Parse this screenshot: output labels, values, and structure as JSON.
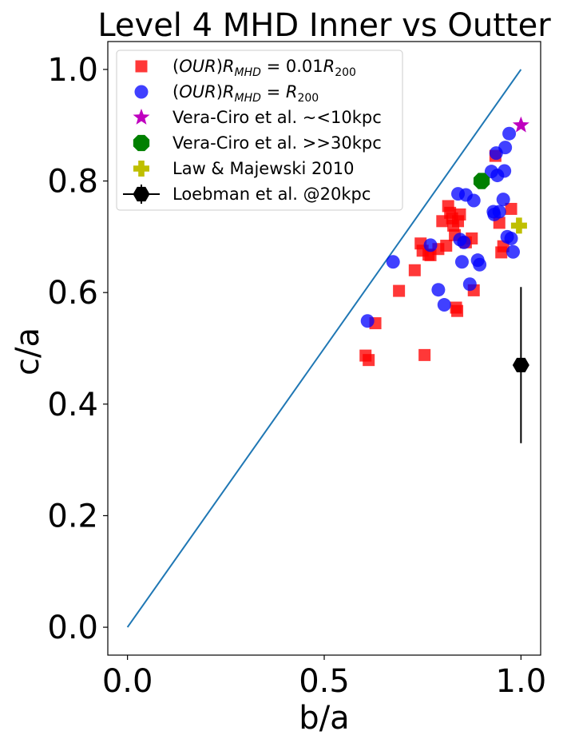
{
  "chart_data": {
    "type": "scatter",
    "title": "Level 4 MHD Inner vs Outter",
    "xlabel": "b/a",
    "ylabel": "c/a",
    "xlim": [
      -0.05,
      1.05
    ],
    "ylim": [
      -0.05,
      1.05
    ],
    "xticks": [
      "0.0",
      "0.5",
      "1.0"
    ],
    "yticks": [
      "0.0",
      "0.2",
      "0.4",
      "0.6",
      "0.8",
      "1.0"
    ],
    "grid": false,
    "legend_position": "top-left",
    "reference_line": {
      "x": [
        0,
        1
      ],
      "y": [
        0,
        1
      ],
      "color": "#1f77b4"
    },
    "series": [
      {
        "name": "(OUR)R_MHD = 0.01R_200",
        "legend_parts": {
          "prefix": "(",
          "italic1": "OUR",
          "mid": ")",
          "italic2": "R",
          "sub2": "MHD",
          "eq": " = 0.01",
          "italic3": "R",
          "sub3": "200"
        },
        "marker": "square",
        "color": "#ff0000",
        "points": [
          [
            0.605,
            0.487
          ],
          [
            0.613,
            0.479
          ],
          [
            0.63,
            0.545
          ],
          [
            0.69,
            0.603
          ],
          [
            0.73,
            0.64
          ],
          [
            0.745,
            0.688
          ],
          [
            0.75,
            0.675
          ],
          [
            0.755,
            0.488
          ],
          [
            0.765,
            0.668
          ],
          [
            0.77,
            0.667
          ],
          [
            0.79,
            0.678
          ],
          [
            0.8,
            0.728
          ],
          [
            0.81,
            0.684
          ],
          [
            0.815,
            0.755
          ],
          [
            0.82,
            0.743
          ],
          [
            0.825,
            0.733
          ],
          [
            0.828,
            0.72
          ],
          [
            0.832,
            0.703
          ],
          [
            0.835,
            0.573
          ],
          [
            0.838,
            0.567
          ],
          [
            0.84,
            0.728
          ],
          [
            0.845,
            0.74
          ],
          [
            0.86,
            0.69
          ],
          [
            0.875,
            0.697
          ],
          [
            0.88,
            0.604
          ],
          [
            0.935,
            0.845
          ],
          [
            0.945,
            0.725
          ],
          [
            0.95,
            0.672
          ],
          [
            0.955,
            0.683
          ],
          [
            0.975,
            0.75
          ]
        ]
      },
      {
        "name": "(OUR)R_MHD = R_200",
        "legend_parts": {
          "prefix": "(",
          "italic1": "OUR",
          "mid": ")",
          "italic2": "R",
          "sub2": "MHD",
          "eq": " = ",
          "italic3": "R",
          "sub3": "200"
        },
        "marker": "circle",
        "color": "#0000ff",
        "points": [
          [
            0.61,
            0.549
          ],
          [
            0.675,
            0.655
          ],
          [
            0.77,
            0.685
          ],
          [
            0.79,
            0.605
          ],
          [
            0.805,
            0.578
          ],
          [
            0.84,
            0.777
          ],
          [
            0.845,
            0.695
          ],
          [
            0.85,
            0.655
          ],
          [
            0.855,
            0.69
          ],
          [
            0.86,
            0.775
          ],
          [
            0.87,
            0.615
          ],
          [
            0.88,
            0.765
          ],
          [
            0.89,
            0.658
          ],
          [
            0.895,
            0.65
          ],
          [
            0.925,
            0.817
          ],
          [
            0.93,
            0.745
          ],
          [
            0.932,
            0.74
          ],
          [
            0.937,
            0.85
          ],
          [
            0.94,
            0.81
          ],
          [
            0.945,
            0.745
          ],
          [
            0.955,
            0.767
          ],
          [
            0.958,
            0.818
          ],
          [
            0.96,
            0.86
          ],
          [
            0.965,
            0.7
          ],
          [
            0.97,
            0.885
          ],
          [
            0.975,
            0.697
          ],
          [
            0.98,
            0.673
          ]
        ]
      },
      {
        "name": "Vera-Ciro et al. ~<10kpc",
        "marker": "star",
        "color": "#bf00bf",
        "points": [
          [
            1.0,
            0.9
          ]
        ]
      },
      {
        "name": "Vera-Ciro et al. >>30kpc",
        "marker": "octagon",
        "color": "#008000",
        "points": [
          [
            0.9,
            0.8
          ]
        ]
      },
      {
        "name": "Law & Majewski 2010",
        "marker": "plus",
        "color": "#bfbf00",
        "points": [
          [
            0.995,
            0.72
          ]
        ]
      },
      {
        "name": "Loebman et al. @20kpc",
        "marker": "hexagon",
        "color": "#000000",
        "points": [
          [
            1.0,
            0.47
          ]
        ],
        "yerr": [
          0.14
        ]
      }
    ]
  }
}
